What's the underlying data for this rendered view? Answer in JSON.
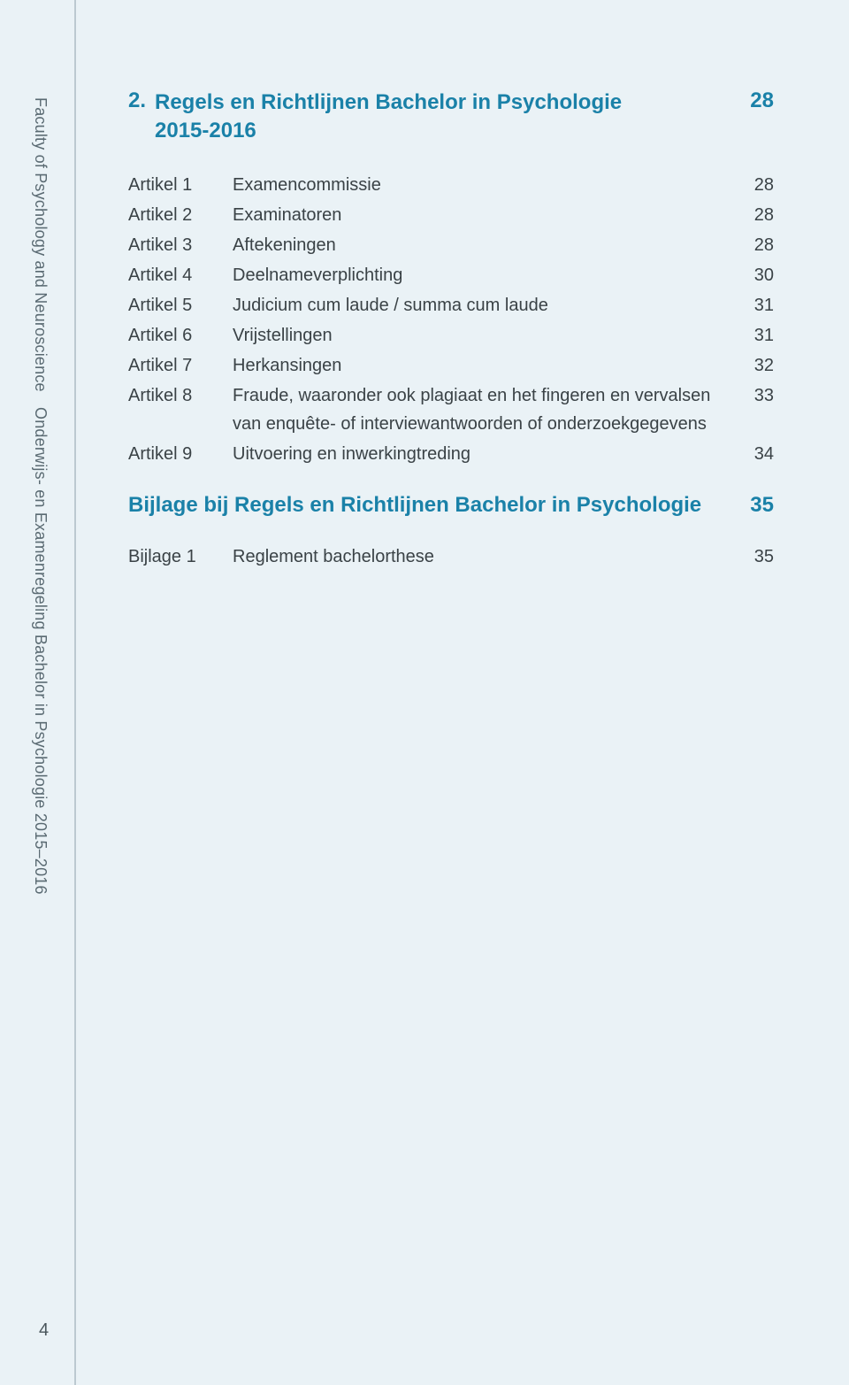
{
  "sidebar": {
    "text_part1": "Faculty of Psychology and Neuroscience",
    "text_part2": "Onderwijs- en Examenregeling Bachelor in Psychologie 2015–2016"
  },
  "section": {
    "number": "2.",
    "title_line1": "Regels en Richtlijnen Bachelor in Psychologie",
    "title_line2": "2015-2016",
    "page": "28"
  },
  "items": [
    {
      "label": "Artikel 1",
      "desc": "Examencommissie",
      "page": "28"
    },
    {
      "label": "Artikel 2",
      "desc": "Examinatoren",
      "page": "28"
    },
    {
      "label": "Artikel 3",
      "desc": "Aftekeningen",
      "page": "28"
    },
    {
      "label": "Artikel 4",
      "desc": "Deelnameverplichting",
      "page": "30"
    },
    {
      "label": "Artikel 5",
      "desc": "Judicium cum laude / summa cum laude",
      "page": "31"
    },
    {
      "label": "Artikel 6",
      "desc": "Vrijstellingen",
      "page": "31"
    },
    {
      "label": "Artikel 7",
      "desc": "Herkansingen",
      "page": "32"
    },
    {
      "label": "Artikel 8",
      "desc": "Fraude, waaronder ook plagiaat en het fingeren en vervalsen van enquête- of interviewantwoorden of onderzoekgegevens",
      "page": "33"
    },
    {
      "label": "Artikel 9",
      "desc": "Uitvoering en inwerkingtreding",
      "page": "34"
    }
  ],
  "appendix_head": {
    "title": "Bijlage bij Regels en Richtlijnen Bachelor in Psychologie",
    "page": "35"
  },
  "appendix_items": [
    {
      "label": "Bijlage 1",
      "desc": "Reglement bachelorthese",
      "page": "35"
    }
  ],
  "page_number": "4"
}
